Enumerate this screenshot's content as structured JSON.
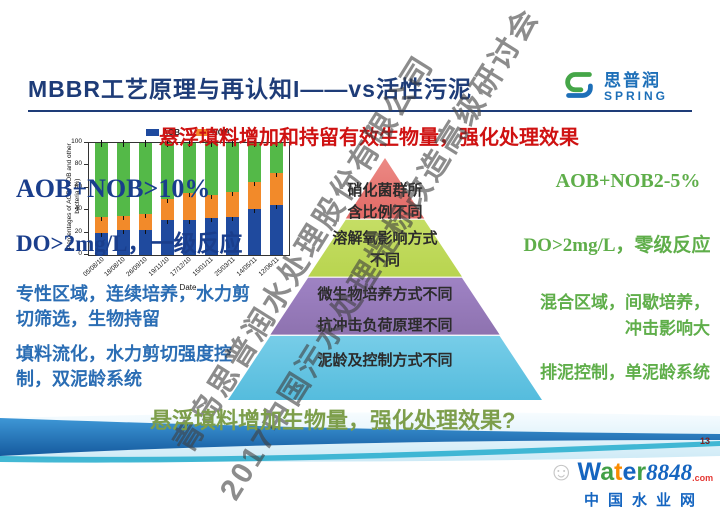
{
  "slide": {
    "title": "MBBR工艺原理与再认知I——vs活性污泥",
    "page_number": "13"
  },
  "logo": {
    "name": "思普润",
    "subtitle": "SPRING"
  },
  "headline": "悬浮填料增加和持留有效生物量，强化处理效果",
  "left_column": {
    "aob_note": "AOB+NOB>10%",
    "do_note": "DO>2mg/L，一级反应",
    "block1": "专性区域，连续培养，水力剪切筛选，生物持留",
    "block2": "填料流化，水力剪切强度控制，双泥龄系统"
  },
  "right_column": {
    "aob_note": "AOB+NOB2-5%",
    "do_note": "DO>2mg/L，零级反应",
    "block1": "混合区域，间歇培养，冲击影响大",
    "block2": "排泥控制，单泥龄系统"
  },
  "pyramid": {
    "levels": [
      {
        "lines": [
          "硝化菌群所",
          "含比例不同"
        ],
        "colors": [
          "#ec8a85",
          "#d5413e",
          "#b13331"
        ]
      },
      {
        "lines": [
          "溶解氧影响方式",
          "不同"
        ],
        "colors": [
          "#d3e87c",
          "#b5d24a",
          "#9cbf36"
        ]
      },
      {
        "lines": [
          "微生物培养方式不同",
          "抗冲击负荷原理不同"
        ],
        "colors": [
          "#bda6d8",
          "#9b7fc0",
          "#7a5f96"
        ]
      },
      {
        "lines": [
          "泥龄及控制方式不同"
        ],
        "colors": [
          "#c8eefb",
          "#8fd9f0",
          "#55bcdd"
        ]
      }
    ]
  },
  "bottom_note": "悬浮填料增加生物量，强化处理效果?",
  "watermark": {
    "line1": "青岛思普润水处理股份有限公司",
    "line2": "2017中国污水处理提标改造高级研讨会"
  },
  "footer_logo": {
    "letters": [
      {
        "ch": "W",
        "color": "#1565c0"
      },
      {
        "ch": "a",
        "color": "#43a047"
      },
      {
        "ch": "t",
        "color": "#fb8c00"
      },
      {
        "ch": "e",
        "color": "#1565c0"
      },
      {
        "ch": "r",
        "color": "#43a047"
      }
    ],
    "number": "8848",
    "suffix": ".com",
    "subtitle": "中国水业网",
    "doodle_icon": "smiley-sketch-icon"
  },
  "colors": {
    "title_navy": "#1e3c78",
    "headline_red": "#cf1212",
    "left_text_blue": "#2a6db4",
    "right_text_green": "#5fae4a",
    "overlay_navy": "#1a3e8c",
    "bottom_olive": "#7d9e4b",
    "wave_blue": "#1a6ab0",
    "wave_teal": "#2fb0cf"
  },
  "chart_data": {
    "type": "bar",
    "stacked": true,
    "title": "",
    "xlabel": "Date",
    "ylabel": "Percentages of AOB, NOB and other bacteria (%)",
    "ylim": [
      0,
      100
    ],
    "yticks": [
      0,
      20,
      40,
      60,
      80,
      100
    ],
    "grid": false,
    "legend": [
      "AOB",
      "NOB"
    ],
    "legend_position": "top",
    "error_bars": true,
    "categories": [
      "05/08/10",
      "18/08/10",
      "26/09/10",
      "19/11/10",
      "17/12/10",
      "15/01/11",
      "25/03/11",
      "14/05/11",
      "12/06/11"
    ],
    "series": [
      {
        "name": "AOB",
        "color": "#1f4a9e",
        "values": [
          20,
          22,
          22,
          31,
          31,
          33,
          34,
          41,
          45
        ]
      },
      {
        "name": "NOB",
        "color": "#f28a2a",
        "values": [
          14,
          13,
          15,
          19,
          24,
          21,
          22,
          24,
          28
        ]
      },
      {
        "name": "other bacteria",
        "color": "#54b948",
        "values": [
          66,
          65,
          63,
          50,
          45,
          46,
          44,
          35,
          27
        ]
      }
    ]
  }
}
